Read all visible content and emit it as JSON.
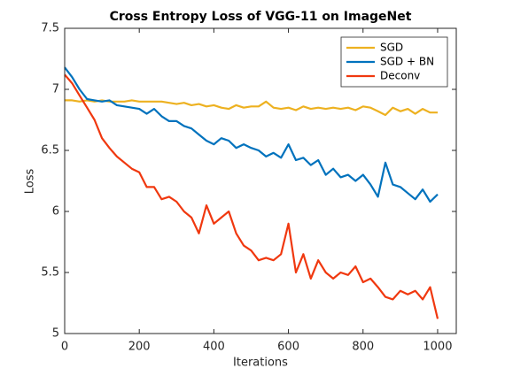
{
  "chart_data": {
    "type": "line",
    "title": "Cross Entropy Loss of VGG-11 on ImageNet",
    "xlabel": "Iterations",
    "ylabel": "Loss",
    "x": [
      0,
      20,
      40,
      60,
      80,
      100,
      120,
      140,
      160,
      180,
      200,
      220,
      240,
      260,
      280,
      300,
      320,
      340,
      360,
      380,
      400,
      420,
      440,
      460,
      480,
      500,
      520,
      540,
      560,
      580,
      600,
      620,
      640,
      660,
      680,
      700,
      720,
      740,
      760,
      780,
      800,
      820,
      840,
      860,
      880,
      900,
      920,
      940,
      960,
      980,
      1000
    ],
    "series": [
      {
        "name": "SGD",
        "color": "#edb120",
        "values": [
          6.91,
          6.91,
          6.9,
          6.91,
          6.9,
          6.91,
          6.9,
          6.9,
          6.9,
          6.91,
          6.9,
          6.9,
          6.9,
          6.9,
          6.89,
          6.88,
          6.89,
          6.87,
          6.88,
          6.86,
          6.87,
          6.85,
          6.84,
          6.87,
          6.85,
          6.86,
          6.86,
          6.9,
          6.85,
          6.84,
          6.85,
          6.83,
          6.86,
          6.84,
          6.85,
          6.84,
          6.85,
          6.84,
          6.85,
          6.83,
          6.86,
          6.85,
          6.82,
          6.79,
          6.85,
          6.82,
          6.84,
          6.8,
          6.84,
          6.81,
          6.81
        ]
      },
      {
        "name": "SGD + BN",
        "color": "#0072bd",
        "values": [
          7.18,
          7.1,
          7.0,
          6.92,
          6.91,
          6.9,
          6.91,
          6.87,
          6.86,
          6.85,
          6.84,
          6.8,
          6.84,
          6.78,
          6.74,
          6.74,
          6.7,
          6.68,
          6.63,
          6.58,
          6.55,
          6.6,
          6.58,
          6.52,
          6.55,
          6.52,
          6.5,
          6.45,
          6.48,
          6.44,
          6.55,
          6.42,
          6.44,
          6.38,
          6.42,
          6.3,
          6.35,
          6.28,
          6.3,
          6.25,
          6.3,
          6.22,
          6.12,
          6.4,
          6.22,
          6.2,
          6.15,
          6.1,
          6.18,
          6.08,
          6.14
        ]
      },
      {
        "name": "Deconv",
        "color": "#f0380f",
        "values": [
          7.12,
          7.05,
          6.95,
          6.85,
          6.75,
          6.6,
          6.52,
          6.45,
          6.4,
          6.35,
          6.32,
          6.2,
          6.2,
          6.1,
          6.12,
          6.08,
          6.0,
          5.95,
          5.82,
          6.05,
          5.9,
          5.95,
          6.0,
          5.82,
          5.72,
          5.68,
          5.6,
          5.62,
          5.6,
          5.65,
          5.9,
          5.5,
          5.65,
          5.45,
          5.6,
          5.5,
          5.45,
          5.5,
          5.48,
          5.55,
          5.42,
          5.45,
          5.38,
          5.3,
          5.28,
          5.35,
          5.32,
          5.35,
          5.28,
          5.38,
          5.12
        ]
      }
    ],
    "xlim": [
      0,
      1050
    ],
    "xticks": [
      0,
      200,
      400,
      600,
      800,
      1000
    ],
    "ylim": [
      5,
      7.5
    ],
    "yticks": [
      5,
      5.5,
      6,
      6.5,
      7,
      7.5
    ],
    "legend": "top-right",
    "grid": false
  }
}
